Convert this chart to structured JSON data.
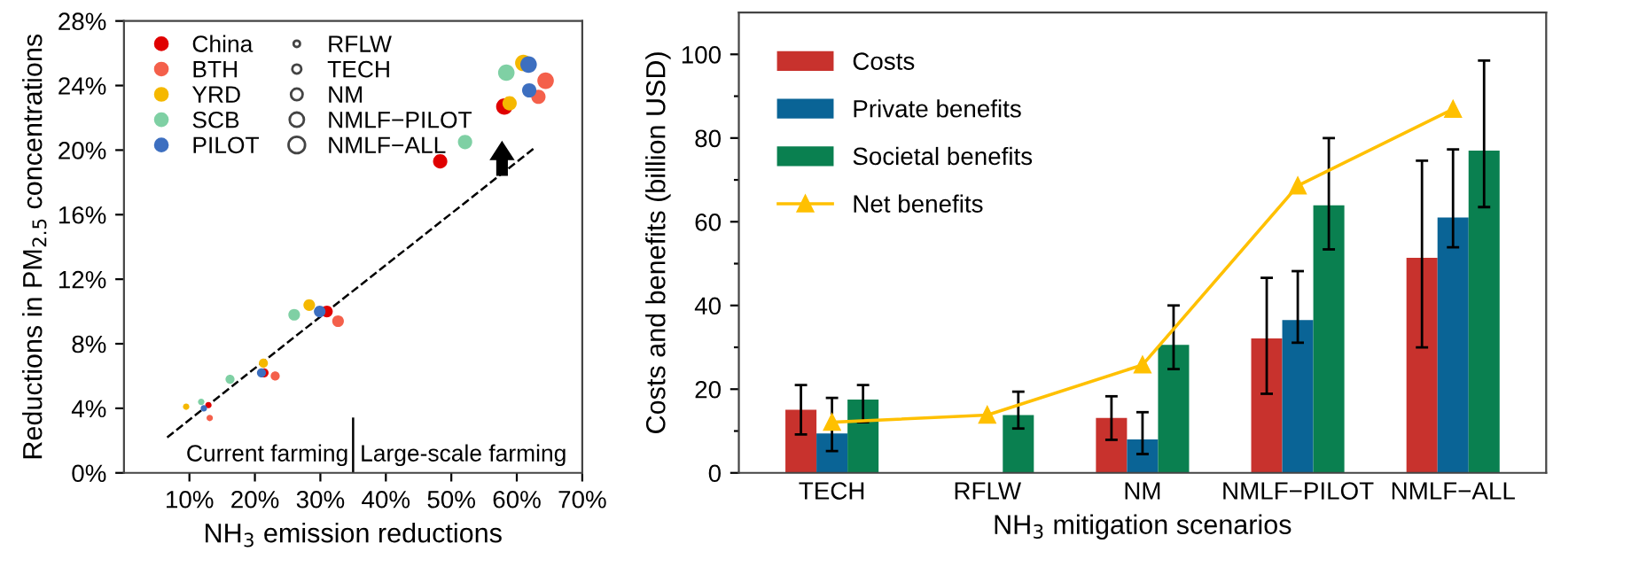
{
  "chart_data": [
    {
      "type": "bubble",
      "xlabel": "NH$_{3}$ emission reductions",
      "ylabel": "Reductions in PM$_{2.5}$ concentrations",
      "xlim": [
        0,
        70
      ],
      "xticks": [
        {
          "value": 10,
          "label": "10%"
        },
        {
          "value": 20,
          "label": "20%"
        },
        {
          "value": 30,
          "label": "30%"
        },
        {
          "value": 40,
          "label": "40%"
        },
        {
          "value": 50,
          "label": "50%"
        },
        {
          "value": 60,
          "label": "60%"
        },
        {
          "value": 70,
          "label": "70%"
        }
      ],
      "ylim": [
        0,
        28
      ],
      "yticks": [
        {
          "value": 0,
          "label": "0%"
        },
        {
          "value": 4,
          "label": "4%"
        },
        {
          "value": 8,
          "label": "8%"
        },
        {
          "value": 12,
          "label": "12%"
        },
        {
          "value": 16,
          "label": "16%"
        },
        {
          "value": 20,
          "label": "20%"
        },
        {
          "value": 24,
          "label": "24%"
        },
        {
          "value": 28,
          "label": "28%"
        }
      ],
      "size_legend": [
        {
          "value": 0.15,
          "label": "RFLW"
        },
        {
          "value": 0.3,
          "label": "TECH"
        },
        {
          "value": 0.5,
          "label": "NM"
        },
        {
          "value": 0.75,
          "label": "NMLF−PILOT"
        },
        {
          "value": 1,
          "label": "NMLF−ALL"
        }
      ],
      "series": [
        {
          "type": "line",
          "color": "#000000",
          "line_style": "dashed",
          "x": [
            6.6,
            62.6
          ],
          "values": [
            2.2,
            20.1
          ]
        },
        {
          "name": "China",
          "color": "#e00000",
          "x": [
            12.9,
            21.4,
            31.0,
            48.3,
            58.1
          ],
          "values": [
            4.2,
            6.2,
            10.0,
            19.3,
            22.7
          ],
          "sizes": [
            0.15,
            0.3,
            0.5,
            0.75,
            1
          ]
        },
        {
          "name": "BTH",
          "color": "#f4604b",
          "x": [
            13.1,
            23.1,
            32.7,
            63.3,
            64.4
          ],
          "values": [
            3.4,
            6.0,
            9.4,
            23.3,
            24.3
          ],
          "sizes": [
            0.15,
            0.3,
            0.5,
            0.75,
            1
          ]
        },
        {
          "name": "YRD",
          "color": "#f5b800",
          "x": [
            9.5,
            21.3,
            28.3,
            58.9,
            61.0
          ],
          "values": [
            4.1,
            6.8,
            10.4,
            22.9,
            25.4
          ],
          "sizes": [
            0.15,
            0.3,
            0.5,
            0.75,
            1
          ]
        },
        {
          "name": "SCB",
          "color": "#7fd0a4",
          "x": [
            11.8,
            16.2,
            26.0,
            52.1,
            58.4
          ],
          "values": [
            4.4,
            5.8,
            9.8,
            20.5,
            24.8
          ],
          "sizes": [
            0.15,
            0.3,
            0.5,
            0.75,
            1
          ]
        },
        {
          "name": "PILOT",
          "color": "#3d6fc0",
          "x": [
            12.2,
            21.0,
            29.9,
            61.9,
            61.8
          ],
          "values": [
            4.0,
            6.2,
            10.0,
            23.7,
            25.3
          ],
          "sizes": [
            0.15,
            0.3,
            0.5,
            0.75,
            1
          ]
        }
      ],
      "ref_lines": [
        {
          "axis": "x",
          "value": 35,
          "color": "#000000"
        }
      ],
      "annotations": [
        "Current farming",
        "Large-scale farming"
      ],
      "legend": "top left",
      "grid": false
    },
    {
      "type": "bar",
      "xlabel": "NH$_{3}$ mitigation scenarios",
      "ylabel": "Costs and benefits (billion USD)",
      "categories": [
        "TECH",
        "RFLW",
        "NM",
        "NMLF−PILOT",
        "NMLF−ALL"
      ],
      "ylim": [
        0,
        110
      ],
      "yticks": [
        0,
        {
          "value": 10,
          "label": null
        },
        20,
        {
          "value": 30,
          "label": null
        },
        40,
        {
          "value": 50,
          "label": null
        },
        60,
        {
          "value": 70,
          "label": null
        },
        80,
        {
          "value": 90,
          "label": null
        },
        100
      ],
      "series": [
        {
          "name": "Costs",
          "color": "#c8322d",
          "values": [
            15.1,
            null,
            13.1,
            32.1,
            51.4
          ],
          "errors": [
            [
              9.2,
              21.0
            ],
            null,
            [
              7.9,
              18.3
            ],
            [
              18.9,
              46.6
            ],
            [
              30.0,
              74.6
            ]
          ]
        },
        {
          "name": "Private benefits",
          "color": "#0a6496",
          "values": [
            9.4,
            null,
            8.0,
            36.5,
            61.0
          ],
          "errors": [
            [
              5.2,
              17.9
            ],
            null,
            [
              4.5,
              14.5
            ],
            [
              31.1,
              48.2
            ],
            [
              53.9,
              77.3
            ]
          ]
        },
        {
          "name": "Societal benefits",
          "color": "#0a8050",
          "values": [
            17.5,
            13.8,
            30.6,
            63.9,
            77.0
          ],
          "errors": [
            [
              12.1,
              21.0
            ],
            [
              10.6,
              19.4
            ],
            [
              24.8,
              40.0
            ],
            [
              53.4,
              80.0
            ],
            [
              63.5,
              98.5
            ]
          ]
        },
        {
          "name": "Net benefits",
          "type": "line",
          "color": "#ffc000",
          "marker": "triangle",
          "values": [
            12.1,
            13.8,
            25.8,
            68.6,
            86.9
          ]
        }
      ],
      "legend": "top left",
      "grid": false
    }
  ]
}
